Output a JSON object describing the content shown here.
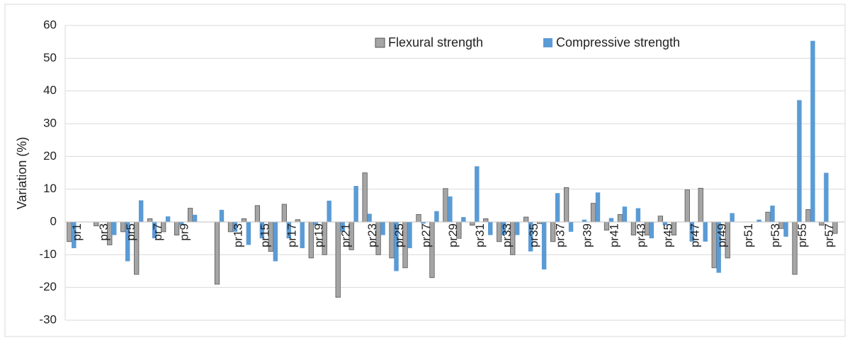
{
  "chart_data": {
    "type": "bar",
    "y_label": "Variation (%)",
    "categories": [
      "pr1",
      null,
      "pr3",
      null,
      "pr5",
      null,
      "pr7",
      null,
      "pr9",
      null,
      null,
      null,
      "pr13",
      null,
      "pr15",
      null,
      "pr17",
      null,
      "pr19",
      null,
      "pr21",
      null,
      "pr23",
      null,
      "pr25",
      null,
      "pr27",
      null,
      "pr29",
      null,
      "pr31",
      null,
      "pr33",
      null,
      "pr35",
      null,
      "pr37",
      null,
      "pr39",
      null,
      "pr41",
      null,
      "pr43",
      null,
      "pr45",
      null,
      "pr47",
      null,
      "pr49",
      null,
      "pr51",
      null,
      "pr53",
      null,
      "pr55",
      null,
      "pr57",
      null
    ],
    "series": [
      {
        "name": "Flexural strength",
        "color": "#a5a5a5",
        "values": [
          -6,
          0,
          -1.2,
          -7,
          -3,
          -16,
          1,
          -3,
          -4,
          4.2,
          0,
          -19,
          -3,
          1,
          5,
          -9,
          5.4,
          0.7,
          -11,
          -10,
          -23,
          -8.5,
          15,
          -10,
          -11,
          -14,
          2.3,
          -17,
          10.2,
          -5,
          -1,
          1,
          -6,
          -10,
          1.5,
          -0.5,
          -6,
          10.5,
          0,
          5.7,
          -2.5,
          2.3,
          -4,
          -4,
          1.8,
          -4,
          9.8,
          10.3,
          -14,
          -11,
          0,
          0,
          3,
          -2,
          -16,
          3.8,
          -1,
          -3.5
        ]
      },
      {
        "name": "Compressive strength",
        "color": "#5b9bd5",
        "values": [
          -8,
          0,
          0,
          -4,
          -12,
          6.6,
          -5,
          1.7,
          -1,
          2.2,
          0,
          3.7,
          -3,
          -7,
          -5,
          -12,
          -5,
          -8,
          -1,
          6.5,
          -3,
          11,
          2.5,
          -4,
          -15,
          -8,
          -0.5,
          3.3,
          7.8,
          1.5,
          17,
          -4,
          -4,
          -4,
          -9,
          -14.5,
          8.8,
          -3,
          0.7,
          9,
          1.2,
          4.7,
          4.2,
          -5,
          -1,
          0,
          -6,
          -6,
          -15.5,
          2.7,
          0,
          0.7,
          5,
          -4.5,
          37.2,
          55.3,
          15,
          0
        ]
      }
    ],
    "ylim": [
      -30,
      60
    ],
    "yticks": [
      -30,
      -20,
      -10,
      0,
      10,
      20,
      30,
      40,
      50,
      60
    ],
    "grid": true
  }
}
